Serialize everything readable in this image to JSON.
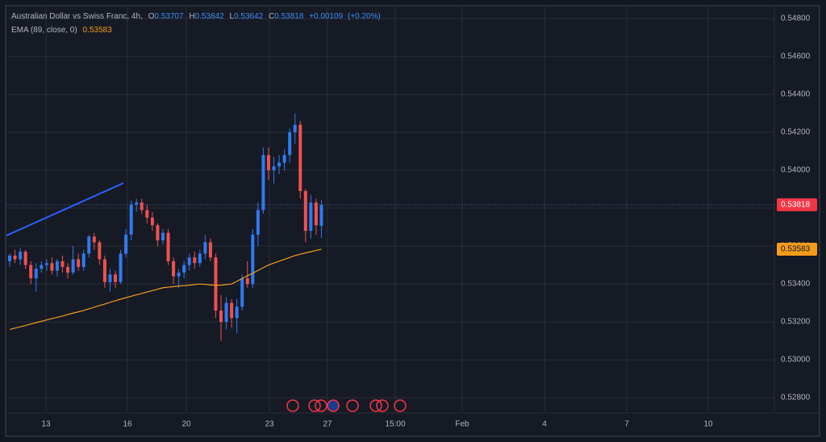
{
  "chart_data": {
    "type": "candlestick",
    "title": "Australian Dollar vs Swiss Franc, 4h,",
    "ohlc_labels": [
      "O",
      "H",
      "L",
      "C"
    ],
    "change": {
      "value": 0.00109,
      "label": "+0.00109"
    },
    "change_pct": {
      "value": 0.2,
      "label": "(+0.20%)"
    },
    "indicator_label": "EMA (89, close, 0)",
    "up_color": "#2e7bf0",
    "down_color": "#f0514e",
    "ema_color": "#f59c1a",
    "last_price_color": "#f23645",
    "open": [
      0.5352,
      0.5355,
      0.5353,
      0.5357,
      0.535,
      0.5343,
      0.5348,
      0.535,
      0.5351,
      0.5347,
      0.5352,
      0.5349,
      0.5346,
      0.5353,
      0.5349,
      0.5356,
      0.5365,
      0.5362,
      0.5353,
      0.5341,
      0.5345,
      0.5341,
      0.5356,
      0.5366,
      0.5382,
      0.5383,
      0.5379,
      0.5375,
      0.5371,
      0.5363,
      0.5367,
      0.5352,
      0.5344,
      0.5346,
      0.535,
      0.5354,
      0.5351,
      0.5356,
      0.5362,
      0.5354,
      0.5326,
      0.532,
      0.533,
      0.5322,
      0.5328,
      0.5343,
      0.534,
      0.5366,
      0.5379,
      0.5408,
      0.54,
      0.5402,
      0.5404,
      0.5408,
      0.542,
      0.5424,
      0.5389,
      0.5368,
      0.5383,
      0.53707
    ],
    "high": [
      0.5356,
      0.5358,
      0.5359,
      0.5358,
      0.5352,
      0.5351,
      0.5352,
      0.5353,
      0.5354,
      0.5353,
      0.5355,
      0.5351,
      0.536,
      0.5356,
      0.5358,
      0.5366,
      0.5367,
      0.5363,
      0.5355,
      0.5348,
      0.5347,
      0.5358,
      0.5369,
      0.5384,
      0.5385,
      0.5385,
      0.5382,
      0.5378,
      0.5372,
      0.5369,
      0.5369,
      0.5354,
      0.5348,
      0.5352,
      0.5356,
      0.5357,
      0.5358,
      0.5366,
      0.5364,
      0.5356,
      0.5334,
      0.5333,
      0.5332,
      0.5332,
      0.5345,
      0.5352,
      0.5369,
      0.5383,
      0.5412,
      0.5412,
      0.5407,
      0.5408,
      0.5411,
      0.5422,
      0.543,
      0.5426,
      0.539,
      0.5387,
      0.5385,
      0.53842
    ],
    "low": [
      0.5349,
      0.5351,
      0.535,
      0.5348,
      0.534,
      0.5336,
      0.5346,
      0.5347,
      0.5345,
      0.5344,
      0.5346,
      0.5343,
      0.5345,
      0.5347,
      0.5347,
      0.5354,
      0.5358,
      0.535,
      0.5338,
      0.5336,
      0.5338,
      0.534,
      0.5354,
      0.5363,
      0.5378,
      0.5377,
      0.5372,
      0.5368,
      0.536,
      0.5361,
      0.535,
      0.534,
      0.5338,
      0.5343,
      0.5347,
      0.5348,
      0.5349,
      0.5353,
      0.5352,
      0.5322,
      0.531,
      0.5316,
      0.5317,
      0.5314,
      0.5326,
      0.5338,
      0.5338,
      0.536,
      0.5377,
      0.5395,
      0.5393,
      0.5398,
      0.54,
      0.5404,
      0.5414,
      0.5385,
      0.5362,
      0.5364,
      0.5366,
      0.53642
    ],
    "close": [
      0.5355,
      0.5353,
      0.5357,
      0.535,
      0.5343,
      0.5348,
      0.535,
      0.5351,
      0.5347,
      0.5352,
      0.5349,
      0.5346,
      0.5353,
      0.5349,
      0.5356,
      0.5365,
      0.5362,
      0.5353,
      0.5341,
      0.5345,
      0.5341,
      0.5356,
      0.5366,
      0.5382,
      0.5383,
      0.5379,
      0.5375,
      0.5371,
      0.5363,
      0.5367,
      0.5352,
      0.5344,
      0.5346,
      0.535,
      0.5354,
      0.5351,
      0.5356,
      0.5362,
      0.5354,
      0.5326,
      0.532,
      0.533,
      0.5322,
      0.5328,
      0.5343,
      0.534,
      0.5366,
      0.5379,
      0.5408,
      0.54,
      0.5402,
      0.5404,
      0.5408,
      0.542,
      0.5424,
      0.5389,
      0.5368,
      0.5383,
      0.5371,
      0.53818
    ],
    "ema": [
      0.5316,
      0.53167,
      0.53174,
      0.53181,
      0.53189,
      0.53196,
      0.53203,
      0.5321,
      0.53217,
      0.53224,
      0.53231,
      0.53239,
      0.53246,
      0.53253,
      0.5326,
      0.53269,
      0.53277,
      0.53286,
      0.53294,
      0.53303,
      0.53311,
      0.5332,
      0.533275,
      0.53335,
      0.533425,
      0.5335,
      0.533575,
      0.53365,
      0.533725,
      0.5338,
      0.53383,
      0.53386,
      0.53389,
      0.53391,
      0.53394,
      0.53397,
      0.534,
      0.53398,
      0.53395,
      0.53393,
      0.53394,
      0.53397,
      0.534,
      0.53414,
      0.53429,
      0.53443,
      0.53457,
      0.53471,
      0.53486,
      0.535,
      0.5351,
      0.5352,
      0.5353,
      0.5354,
      0.5355,
      0.53557,
      0.53564,
      0.5357,
      0.53577,
      0.53583
    ],
    "ylim": [
      0.52728,
      0.54864
    ],
    "yticks": [
      {
        "value": 0.528,
        "label": "0.52800"
      },
      {
        "value": 0.53,
        "label": "0.53000"
      },
      {
        "value": 0.532,
        "label": "0.53200"
      },
      {
        "value": 0.534,
        "label": "0.53400"
      },
      {
        "value": 0.536,
        "label": "0.53600"
      },
      {
        "value": 0.538,
        "label": "0.53800"
      },
      {
        "value": 0.54,
        "label": "0.54000"
      },
      {
        "value": 0.542,
        "label": "0.54200"
      },
      {
        "value": 0.544,
        "label": "0.54400"
      },
      {
        "value": 0.546,
        "label": "0.54600"
      },
      {
        "value": 0.548,
        "label": "0.54800"
      }
    ],
    "xtick_labels": [
      "13",
      "16",
      "20",
      "23",
      "27",
      "15:00",
      "Feb",
      "4",
      "7",
      "10"
    ],
    "grid": true
  }
}
